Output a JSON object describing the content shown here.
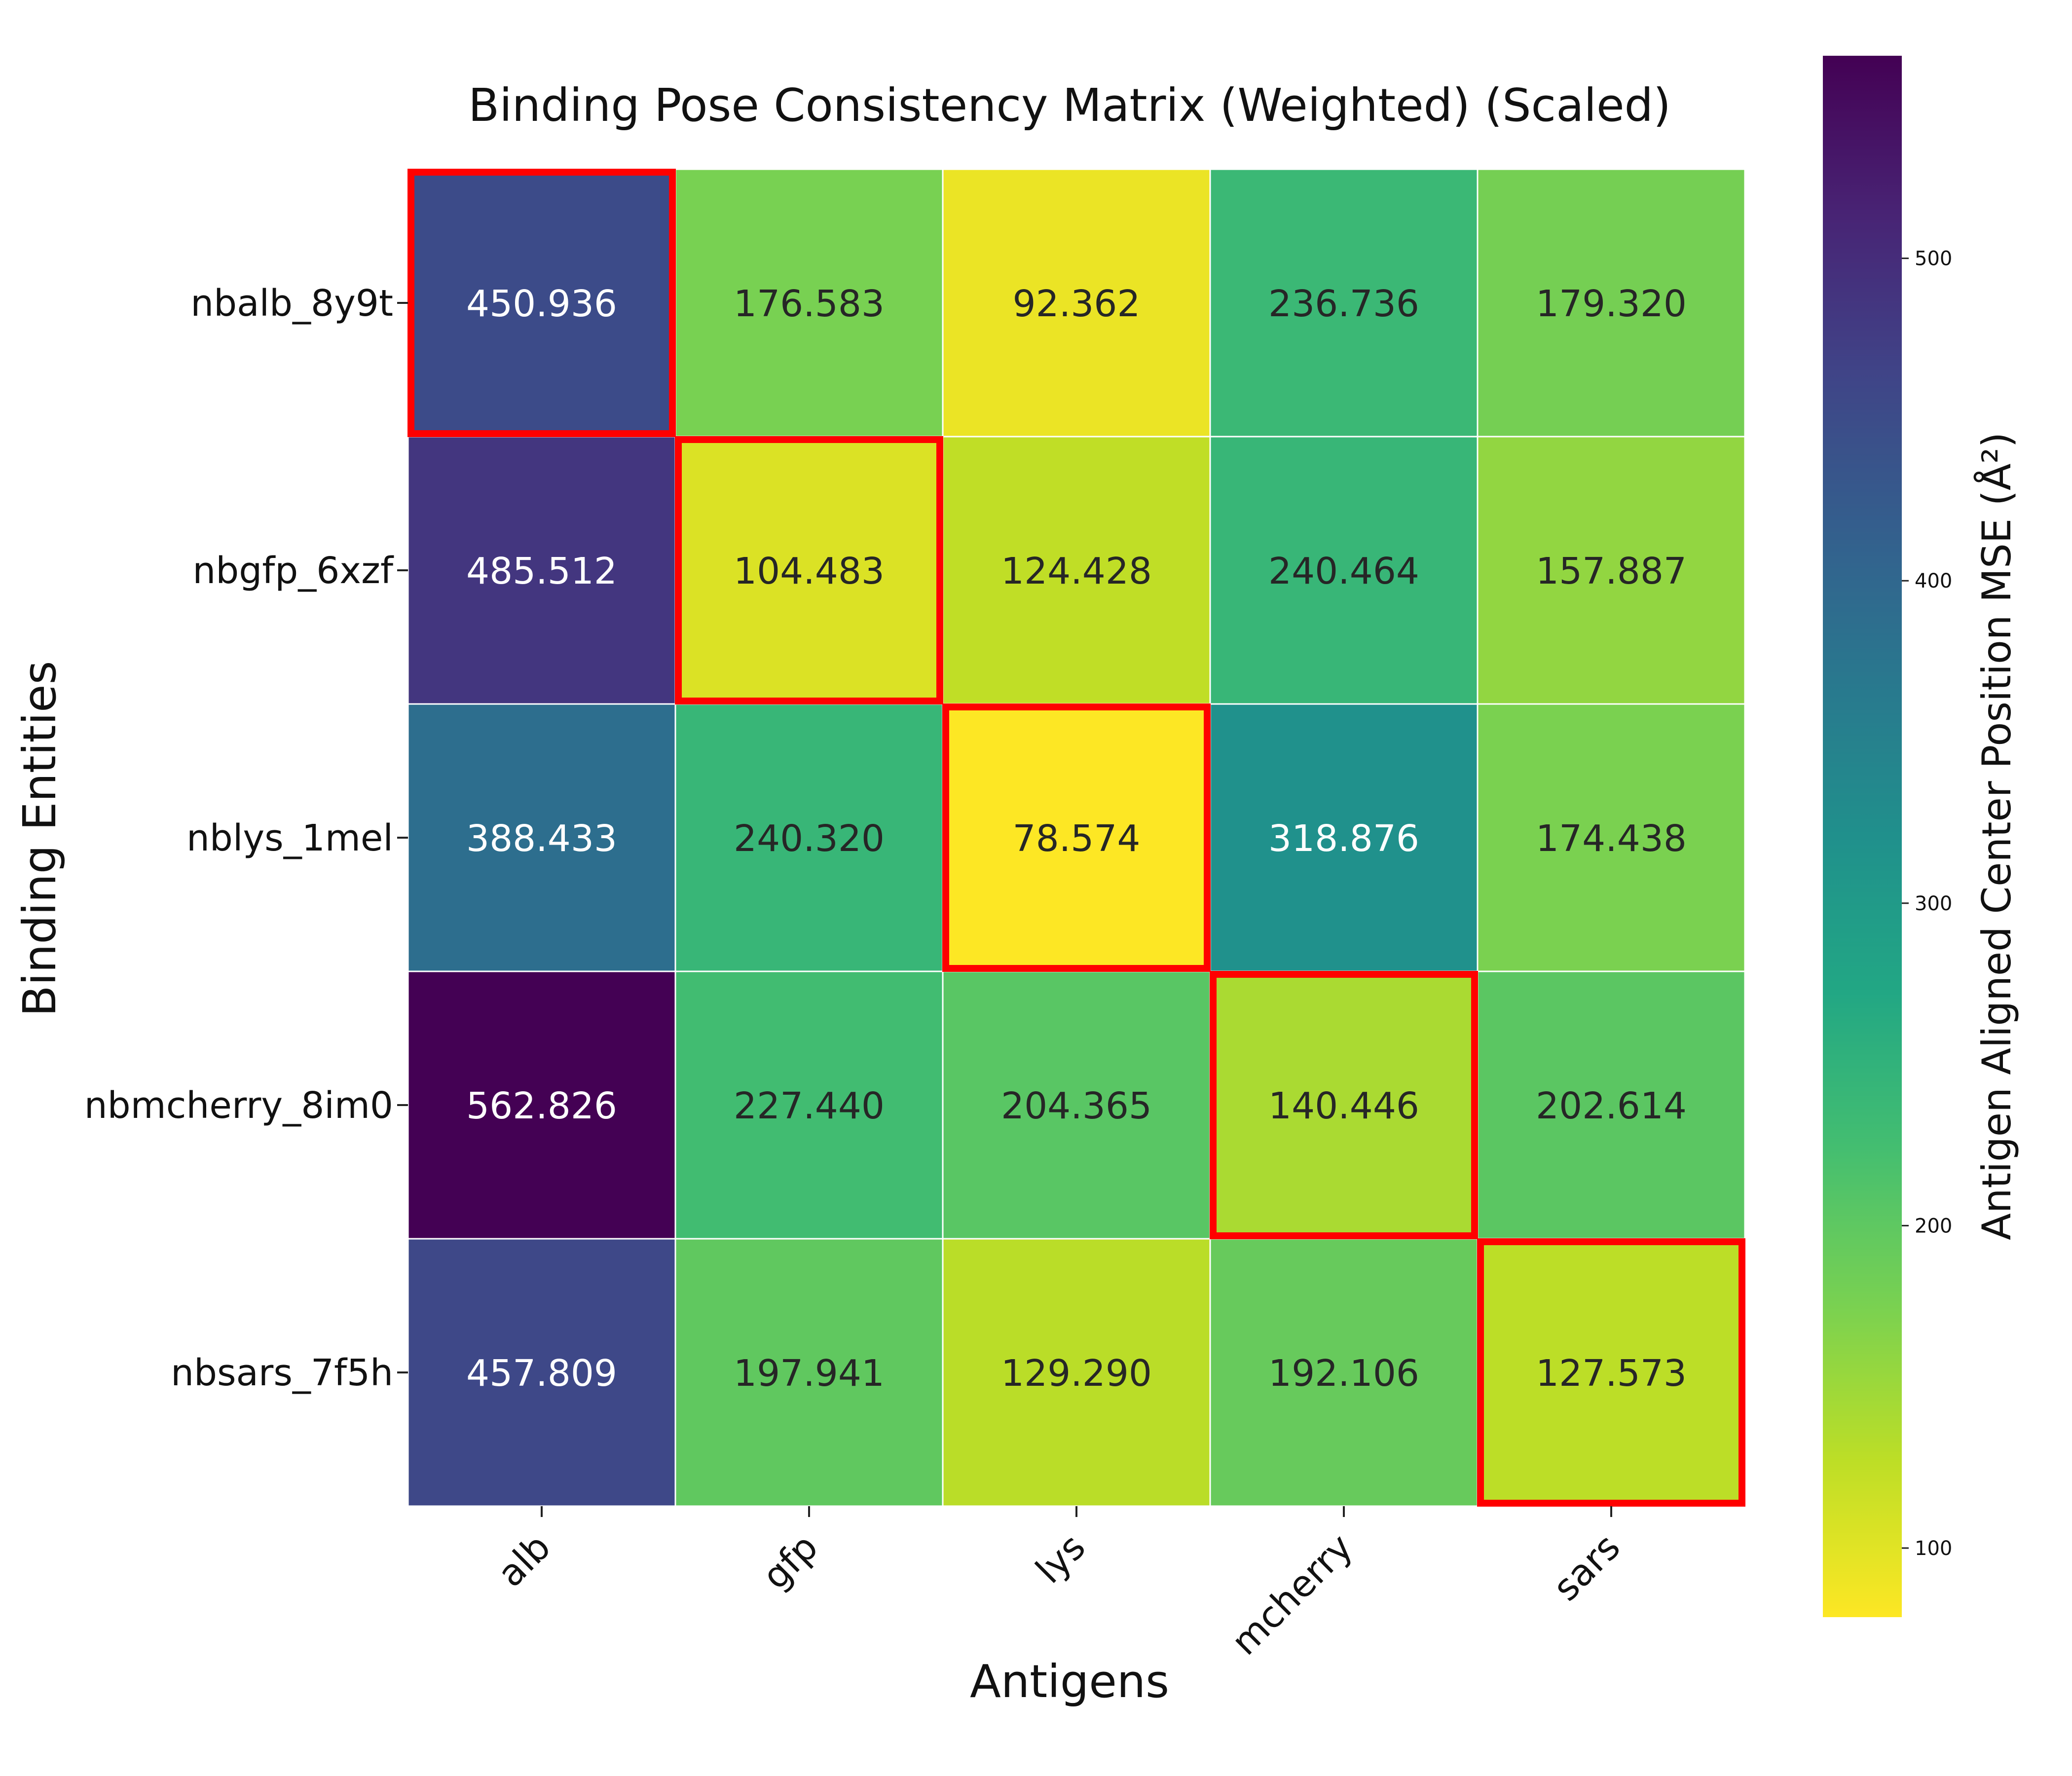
{
  "chart_data": {
    "type": "heatmap",
    "title": "Binding Pose Consistency Matrix (Weighted) (Scaled)",
    "xlabel": "Antigens",
    "ylabel": "Binding Entities",
    "x_categories": [
      "alb",
      "gfp",
      "lys",
      "mcherry",
      "sars"
    ],
    "y_categories": [
      "nbalb_8y9t",
      "nbgfp_6xzf",
      "nblys_1mel",
      "nbmcherry_8im0",
      "nbsars_7f5h"
    ],
    "values": [
      [
        450.936,
        176.583,
        92.362,
        236.736,
        179.32
      ],
      [
        485.512,
        104.483,
        124.428,
        240.464,
        157.887
      ],
      [
        388.433,
        240.32,
        78.574,
        318.876,
        174.438
      ],
      [
        562.826,
        227.44,
        204.365,
        140.446,
        202.614
      ],
      [
        457.809,
        197.941,
        129.29,
        192.106,
        127.573
      ]
    ],
    "value_format_decimals": 3,
    "colormap": "viridis_r",
    "vmin": 78.574,
    "vmax": 562.826,
    "colorbar": {
      "label": "Antigen Aligned Center Position MSE (Å²)",
      "ticks": [
        100,
        200,
        300,
        400,
        500
      ]
    },
    "highlight": "diagonal",
    "highlight_color": "#ff0000",
    "grid_line_color": "#ffffff"
  }
}
